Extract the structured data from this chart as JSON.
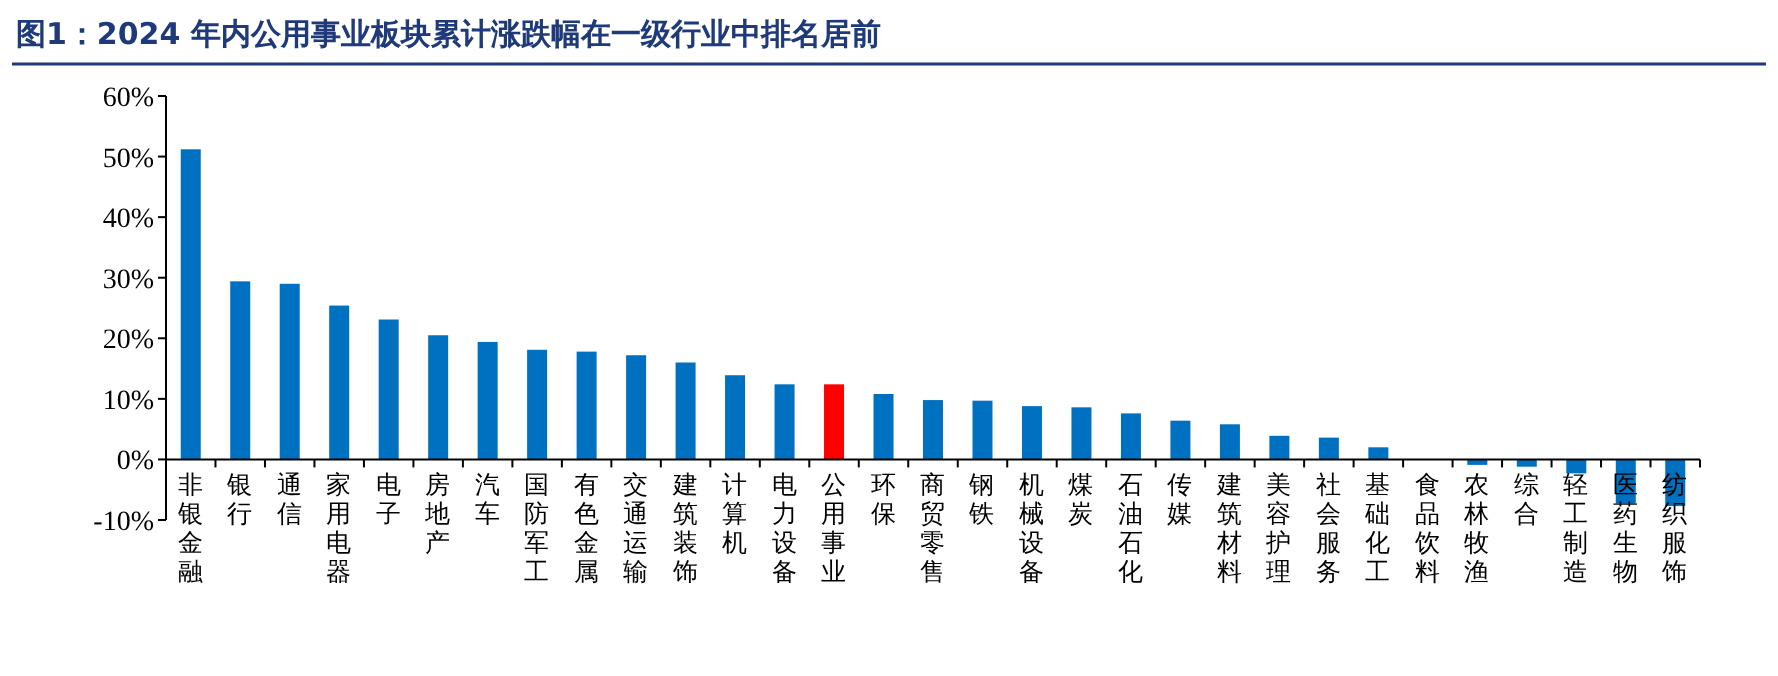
{
  "chart_data": {
    "type": "bar",
    "title": "图1：2024 年内公用事业板块累计涨跌幅在一级行业中排名居前",
    "categories": [
      "非银金融",
      "银行",
      "通信",
      "家用电器",
      "电子",
      "房地产",
      "汽车",
      "国防军工",
      "有色金属",
      "交通运输",
      "建筑装饰",
      "计算机",
      "电力设备",
      "公用事业",
      "环保",
      "商贸零售",
      "钢铁",
      "机械设备",
      "煤炭",
      "石油石化",
      "传媒",
      "建筑材料",
      "美容护理",
      "社会服务",
      "基础化工",
      "食品饮料",
      "农林牧渔",
      "综合",
      "轻工制造",
      "医药生物",
      "纺织服饰"
    ],
    "values": [
      51.2,
      29.4,
      29.0,
      25.4,
      23.1,
      20.5,
      19.4,
      18.1,
      17.8,
      17.2,
      16.0,
      13.9,
      12.4,
      12.4,
      10.8,
      9.8,
      9.7,
      8.8,
      8.6,
      7.6,
      6.4,
      5.8,
      3.9,
      3.6,
      2.0,
      0,
      -0.9,
      -1.2,
      -2.3,
      -7.3,
      -7.7
    ],
    "colors": [
      "#0070c0",
      "#0070c0",
      "#0070c0",
      "#0070c0",
      "#0070c0",
      "#0070c0",
      "#0070c0",
      "#0070c0",
      "#0070c0",
      "#0070c0",
      "#0070c0",
      "#0070c0",
      "#0070c0",
      "#ff0000",
      "#0070c0",
      "#0070c0",
      "#0070c0",
      "#0070c0",
      "#0070c0",
      "#0070c0",
      "#0070c0",
      "#0070c0",
      "#0070c0",
      "#0070c0",
      "#0070c0",
      "#0070c0",
      "#0070c0",
      "#0070c0",
      "#0070c0",
      "#0070c0",
      "#0070c0"
    ],
    "ylim": [
      -10,
      60
    ],
    "yticks": [
      {
        "value": -10,
        "label": "-10%"
      },
      {
        "value": 0,
        "label": "0%"
      },
      {
        "value": 10,
        "label": "10%"
      },
      {
        "value": 20,
        "label": "20%"
      },
      {
        "value": 30,
        "label": "30%"
      },
      {
        "value": 40,
        "label": "40%"
      },
      {
        "value": 50,
        "label": "50%"
      },
      {
        "value": 60,
        "label": "60%"
      }
    ],
    "tick_labels": true
  }
}
